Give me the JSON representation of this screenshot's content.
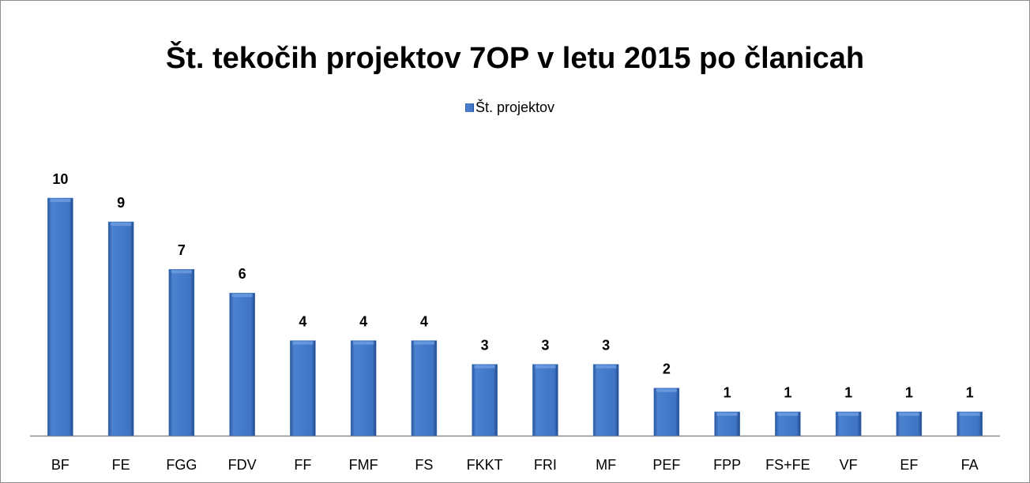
{
  "chart_data": {
    "type": "bar",
    "title": "Št. tekočih projektov 7OP v letu 2015 po članicah",
    "categories": [
      "BF",
      "FE",
      "FGG",
      "FDV",
      "FF",
      "FMF",
      "FS",
      "FKKT",
      "FRI",
      "MF",
      "PEF",
      "FPP",
      "FS+FE",
      "VF",
      "EF",
      "FA"
    ],
    "series": [
      {
        "name": "Št. projektov",
        "color": "#3f74c4",
        "values": [
          10,
          9,
          7,
          6,
          4,
          4,
          4,
          3,
          3,
          3,
          2,
          1,
          1,
          1,
          1,
          1
        ]
      }
    ],
    "legend": "top"
  }
}
